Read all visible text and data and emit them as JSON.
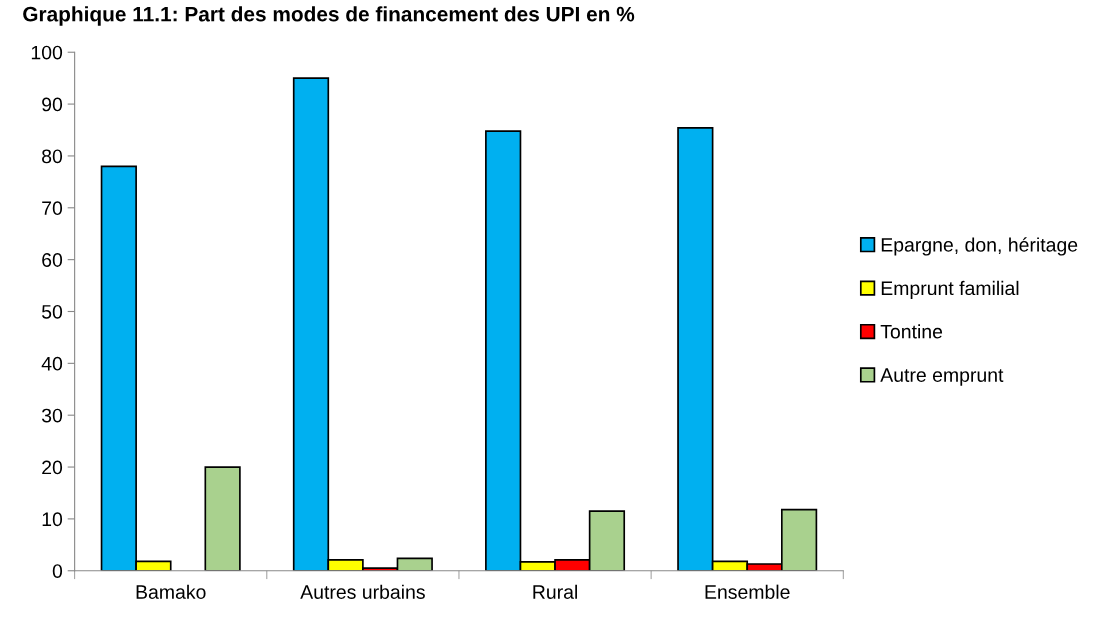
{
  "chart_data": {
    "type": "bar",
    "title": "Graphique 11.1: Part des modes de financement des UPI en %",
    "categories": [
      "Bamako",
      "Autres urbains",
      "Rural",
      "Ensemble"
    ],
    "series": [
      {
        "name": "Epargne, don, héritage",
        "color": "#00b0f0",
        "values": [
          78,
          95,
          84.8,
          85.4
        ]
      },
      {
        "name": "Emprunt familial",
        "color": "#ffff00",
        "values": [
          1.8,
          2.1,
          1.7,
          1.8
        ]
      },
      {
        "name": "Tontine",
        "color": "#ff0000",
        "values": [
          null,
          0.5,
          2.1,
          1.3
        ]
      },
      {
        "name": "Autre emprunt",
        "color": "#a9d18e",
        "values": [
          20,
          2.4,
          11.5,
          11.8
        ]
      }
    ],
    "ylim": [
      0,
      100
    ],
    "yticks": [
      0,
      10,
      20,
      30,
      40,
      50,
      60,
      70,
      80,
      90,
      100
    ],
    "grid": false,
    "legend": "right"
  }
}
